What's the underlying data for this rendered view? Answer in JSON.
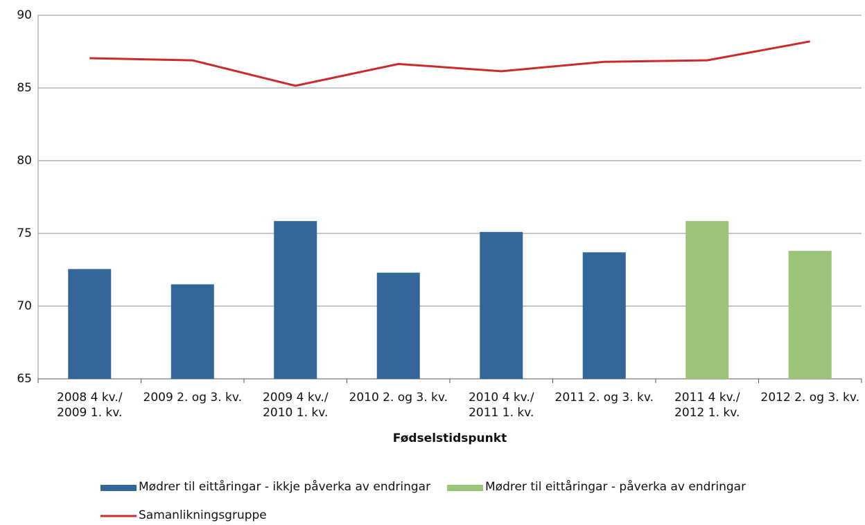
{
  "chart_data": {
    "type": "bar-line",
    "x_label": "Fødselstidspunkt",
    "categories": [
      "2008 4 kv./\n2009 1. kv.",
      "2009 2. og 3. kv.",
      "2009 4 kv./\n2010 1. kv.",
      "2010 2. og 3. kv.",
      "2010 4 kv./\n2011 1. kv.",
      "2011 2. og 3. kv.",
      "2011 4 kv./\n2012 1. kv.",
      "2012 2. og 3. kv."
    ],
    "series": [
      {
        "name": "Mødrer til eittåringar - ikkje påverka av endringar",
        "type": "bar",
        "color": "#336699",
        "values": [
          72.55,
          71.5,
          75.85,
          72.3,
          75.1,
          73.7,
          null,
          null
        ]
      },
      {
        "name": "Mødrer til eittåringar - påverka av endringar",
        "type": "bar",
        "color": "#9bc47a",
        "values": [
          null,
          null,
          null,
          null,
          null,
          null,
          75.85,
          73.8
        ]
      },
      {
        "name": "Samanlikningsgruppe",
        "type": "line",
        "color": "#cc2a2a",
        "values": [
          87.05,
          86.9,
          85.15,
          86.65,
          86.15,
          86.8,
          86.9,
          88.2
        ]
      }
    ],
    "ylim": [
      65,
      90
    ],
    "yticks": [
      65,
      70,
      75,
      80,
      85,
      90
    ],
    "grid": true,
    "legend": "bottom"
  }
}
